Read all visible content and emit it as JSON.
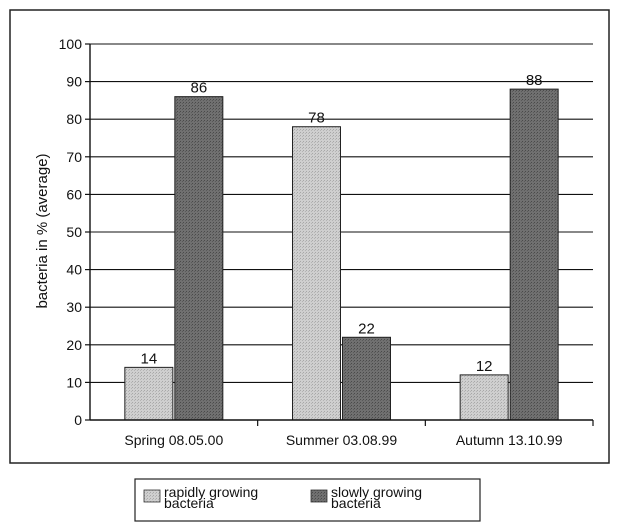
{
  "chart_data": {
    "type": "bar",
    "ylabel": "bacteria in % (average)",
    "ylim": [
      0,
      100
    ],
    "yticks": [
      0,
      10,
      20,
      30,
      40,
      50,
      60,
      70,
      80,
      90,
      100
    ],
    "grid": true,
    "legend_position": "bottom",
    "categories": [
      "Spring 08.05.00",
      "Summer 03.08.99",
      "Autumn 13.10.99"
    ],
    "series": [
      {
        "name_lines": [
          "rapidly growing",
          "bacteria"
        ],
        "values": [
          14,
          78,
          12
        ],
        "color": "#c9c9c9"
      },
      {
        "name_lines": [
          "slowly growing",
          "bacteria"
        ],
        "values": [
          86,
          22,
          88
        ],
        "color": "#6e6e6e"
      }
    ]
  }
}
